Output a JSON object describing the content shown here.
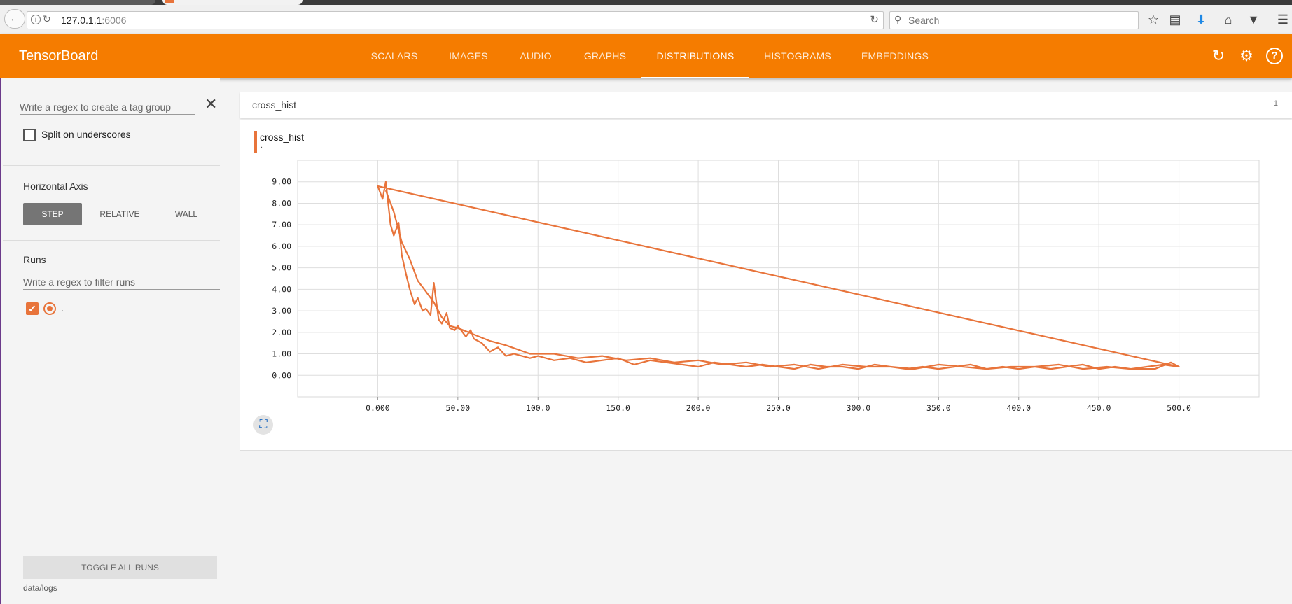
{
  "browser": {
    "url_host": "127.0.1.1",
    "url_port": ":6006",
    "search_placeholder": "Search"
  },
  "app": {
    "title": "TensorBoard",
    "tabs": [
      "SCALARS",
      "IMAGES",
      "AUDIO",
      "GRAPHS",
      "DISTRIBUTIONS",
      "HISTOGRAMS",
      "EMBEDDINGS"
    ],
    "active_tab": "DISTRIBUTIONS",
    "accent_color": "#f57c00"
  },
  "sidebar": {
    "tag_regex_placeholder": "Write a regex to create a tag group",
    "split_label": "Split on underscores",
    "horizontal_axis_title": "Horizontal Axis",
    "axis_options": [
      "STEP",
      "RELATIVE",
      "WALL"
    ],
    "selected_axis": "STEP",
    "runs_title": "Runs",
    "run_regex_placeholder": "Write a regex to filter runs",
    "runs": [
      {
        "name": ".",
        "checked": true,
        "color": "#e8743b"
      }
    ],
    "toggle_all_label": "TOGGLE ALL RUNS",
    "logdir": "data/logs"
  },
  "card": {
    "title": "cross_hist",
    "count": "1",
    "chart_title": "cross_hist",
    "run_label": "."
  },
  "chart_data": {
    "type": "line",
    "title": "cross_hist",
    "xlim": [
      -50,
      550
    ],
    "ylim": [
      -1,
      10
    ],
    "x_ticks": [
      "0.000",
      "50.00",
      "100.0",
      "150.0",
      "200.0",
      "250.0",
      "300.0",
      "350.0",
      "400.0",
      "450.0",
      "500.0"
    ],
    "y_ticks": [
      "0.00",
      "1.00",
      "2.00",
      "3.00",
      "4.00",
      "5.00",
      "6.00",
      "7.00",
      "8.00",
      "9.00"
    ],
    "grid": true,
    "series": [
      {
        "name": ".",
        "color": "#e8743b",
        "x": [
          500,
          0,
          3,
          5,
          8,
          10,
          13,
          15,
          18,
          20,
          23,
          25,
          28,
          30,
          33,
          35,
          38,
          40,
          43,
          45,
          48,
          50,
          53,
          55,
          58,
          60,
          65,
          70,
          75,
          80,
          85,
          90,
          95,
          100,
          110,
          120,
          130,
          140,
          150,
          160,
          170,
          180,
          190,
          200,
          210,
          220,
          230,
          240,
          250,
          260,
          270,
          280,
          290,
          300,
          310,
          320,
          330,
          340,
          350,
          360,
          370,
          380,
          390,
          400,
          410,
          420,
          430,
          440,
          450,
          460,
          470,
          480,
          490,
          500,
          495,
          485,
          470,
          455,
          440,
          425,
          410,
          395,
          380,
          365,
          350,
          335,
          320,
          305,
          290,
          275,
          260,
          245,
          230,
          215,
          200,
          185,
          170,
          155,
          140,
          125,
          110,
          95,
          80,
          70,
          60,
          50,
          45,
          40,
          35,
          30,
          25,
          20,
          15,
          10,
          5
        ],
        "y": [
          0.4,
          8.8,
          8.2,
          9.0,
          7.0,
          6.5,
          7.1,
          5.6,
          4.6,
          4.0,
          3.3,
          3.6,
          3.0,
          3.1,
          2.8,
          4.3,
          2.6,
          2.4,
          2.9,
          2.2,
          2.1,
          2.3,
          2.0,
          1.8,
          2.1,
          1.7,
          1.5,
          1.1,
          1.3,
          0.9,
          1.0,
          0.9,
          0.8,
          0.9,
          0.7,
          0.8,
          0.6,
          0.7,
          0.8,
          0.5,
          0.7,
          0.6,
          0.5,
          0.4,
          0.6,
          0.5,
          0.4,
          0.5,
          0.4,
          0.3,
          0.5,
          0.4,
          0.4,
          0.3,
          0.5,
          0.4,
          0.3,
          0.4,
          0.3,
          0.4,
          0.5,
          0.3,
          0.4,
          0.3,
          0.4,
          0.3,
          0.4,
          0.5,
          0.3,
          0.4,
          0.3,
          0.4,
          0.5,
          0.4,
          0.6,
          0.3,
          0.3,
          0.4,
          0.3,
          0.5,
          0.4,
          0.4,
          0.3,
          0.4,
          0.5,
          0.3,
          0.4,
          0.4,
          0.5,
          0.3,
          0.5,
          0.4,
          0.6,
          0.5,
          0.7,
          0.6,
          0.8,
          0.7,
          0.9,
          0.8,
          1.0,
          1.0,
          1.4,
          1.6,
          1.9,
          2.2,
          2.3,
          2.7,
          3.4,
          3.9,
          4.4,
          5.4,
          6.2,
          7.6,
          8.6
        ]
      }
    ]
  }
}
